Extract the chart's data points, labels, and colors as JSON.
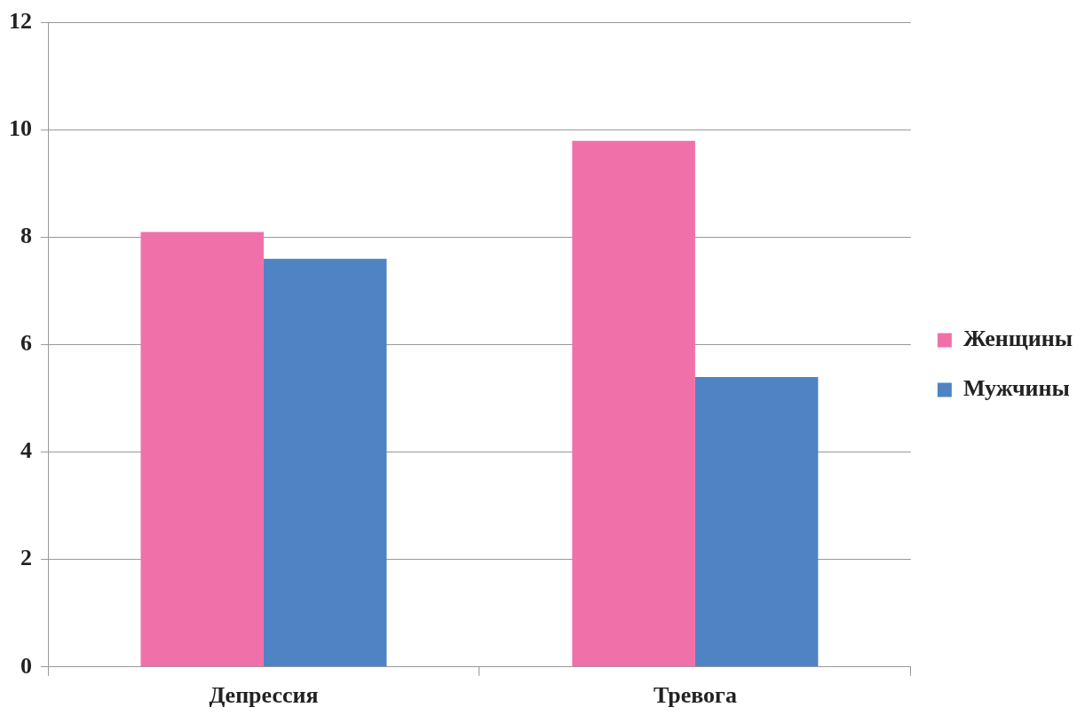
{
  "chart_data": {
    "type": "bar",
    "categories": [
      "Депрессия",
      "Тревога"
    ],
    "series": [
      {
        "name": "Женщины",
        "color": "#f071a9",
        "values": [
          8.1,
          9.8
        ]
      },
      {
        "name": "Мужчины",
        "color": "#4f83c4",
        "values": [
          7.6,
          5.4
        ]
      }
    ],
    "ylim": [
      0,
      12
    ],
    "yticks": [
      0,
      2,
      4,
      6,
      8,
      10,
      12
    ],
    "grid": "y",
    "legend": "right"
  }
}
